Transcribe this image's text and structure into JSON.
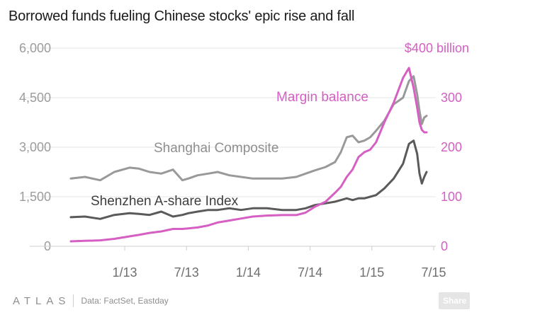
{
  "title": "Borrowed funds fueling Chinese stocks' epic rise and fall",
  "footer": {
    "logo_text": "ATLAS",
    "source": "Data: FactSet, Eastday",
    "share_label": "Share"
  },
  "colors": {
    "shanghai": "#999999",
    "shenzhen": "#5a5a5a",
    "margin": "#d55fc2",
    "grid": "#e6e6e6",
    "axis": "#cfcfcf"
  },
  "chart_data": {
    "type": "line",
    "title": "Borrowed funds fueling Chinese stocks' epic rise and fall",
    "x_ticks": [
      "1/13",
      "7/13",
      "1/14",
      "7/14",
      "1/15",
      "7/15"
    ],
    "x_range": [
      "2012-07",
      "2015-07"
    ],
    "left_axis": {
      "ticks": [
        "0",
        "1,500",
        "3,000",
        "4,500",
        "6,000"
      ],
      "range": [
        0,
        6000
      ]
    },
    "right_axis": {
      "ticks": [
        "0",
        "100",
        "200",
        "300",
        "$400 billion"
      ],
      "range": [
        0,
        400
      ]
    },
    "series": [
      {
        "name": "Shanghai Composite",
        "label": "Shanghai Composite",
        "axis": "left",
        "x": [
          2012.5,
          2012.62,
          2012.75,
          2012.87,
          2013.0,
          2013.08,
          2013.17,
          2013.27,
          2013.37,
          2013.45,
          2013.5,
          2013.58,
          2013.67,
          2013.75,
          2013.85,
          2013.95,
          2014.05,
          2014.17,
          2014.3,
          2014.42,
          2014.5,
          2014.58,
          2014.67,
          2014.75,
          2014.8,
          2014.85,
          2014.9,
          2014.95,
          2015.0,
          2015.05,
          2015.1,
          2015.17,
          2015.25,
          2015.33,
          2015.38,
          2015.42,
          2015.45,
          2015.47,
          2015.49,
          2015.51,
          2015.53
        ],
        "values": [
          2050,
          2100,
          2000,
          2250,
          2380,
          2350,
          2250,
          2200,
          2320,
          2000,
          2050,
          2150,
          2200,
          2250,
          2150,
          2100,
          2050,
          2050,
          2050,
          2100,
          2200,
          2300,
          2400,
          2550,
          2850,
          3300,
          3350,
          3150,
          3200,
          3300,
          3500,
          3800,
          4300,
          4500,
          5000,
          5150,
          4600,
          4100,
          3700,
          3900,
          3950
        ]
      },
      {
        "name": "Shenzhen A-share Index",
        "label": "Shenzhen A-share Index",
        "axis": "left",
        "x": [
          2012.5,
          2012.62,
          2012.75,
          2012.87,
          2013.0,
          2013.08,
          2013.17,
          2013.27,
          2013.37,
          2013.45,
          2013.5,
          2013.58,
          2013.67,
          2013.75,
          2013.85,
          2013.95,
          2014.05,
          2014.17,
          2014.3,
          2014.42,
          2014.5,
          2014.58,
          2014.67,
          2014.75,
          2014.8,
          2014.85,
          2014.9,
          2014.95,
          2015.0,
          2015.05,
          2015.1,
          2015.17,
          2015.25,
          2015.33,
          2015.38,
          2015.42,
          2015.45,
          2015.47,
          2015.49,
          2015.51,
          2015.53
        ],
        "values": [
          880,
          900,
          830,
          950,
          1000,
          980,
          950,
          1050,
          900,
          950,
          1000,
          1050,
          1100,
          1100,
          1150,
          1100,
          1150,
          1150,
          1100,
          1100,
          1150,
          1250,
          1300,
          1350,
          1400,
          1450,
          1400,
          1450,
          1450,
          1500,
          1550,
          1750,
          2050,
          2500,
          3100,
          3200,
          2800,
          2200,
          1900,
          2100,
          2250
        ]
      },
      {
        "name": "Margin balance",
        "label": "Margin balance",
        "axis": "right",
        "x": [
          2012.5,
          2012.62,
          2012.75,
          2012.87,
          2013.0,
          2013.08,
          2013.17,
          2013.27,
          2013.37,
          2013.45,
          2013.5,
          2013.58,
          2013.67,
          2013.75,
          2013.85,
          2013.95,
          2014.05,
          2014.17,
          2014.3,
          2014.42,
          2014.5,
          2014.58,
          2014.67,
          2014.75,
          2014.8,
          2014.85,
          2014.9,
          2014.95,
          2015.0,
          2015.05,
          2015.1,
          2015.17,
          2015.25,
          2015.33,
          2015.38,
          2015.42,
          2015.45,
          2015.47,
          2015.49,
          2015.51,
          2015.53
        ],
        "values": [
          10,
          11,
          12,
          15,
          20,
          23,
          27,
          30,
          35,
          35,
          36,
          38,
          42,
          48,
          52,
          56,
          60,
          62,
          63,
          63,
          68,
          80,
          90,
          108,
          120,
          140,
          155,
          180,
          190,
          195,
          210,
          250,
          290,
          340,
          360,
          320,
          280,
          250,
          235,
          230,
          230
        ]
      }
    ]
  }
}
